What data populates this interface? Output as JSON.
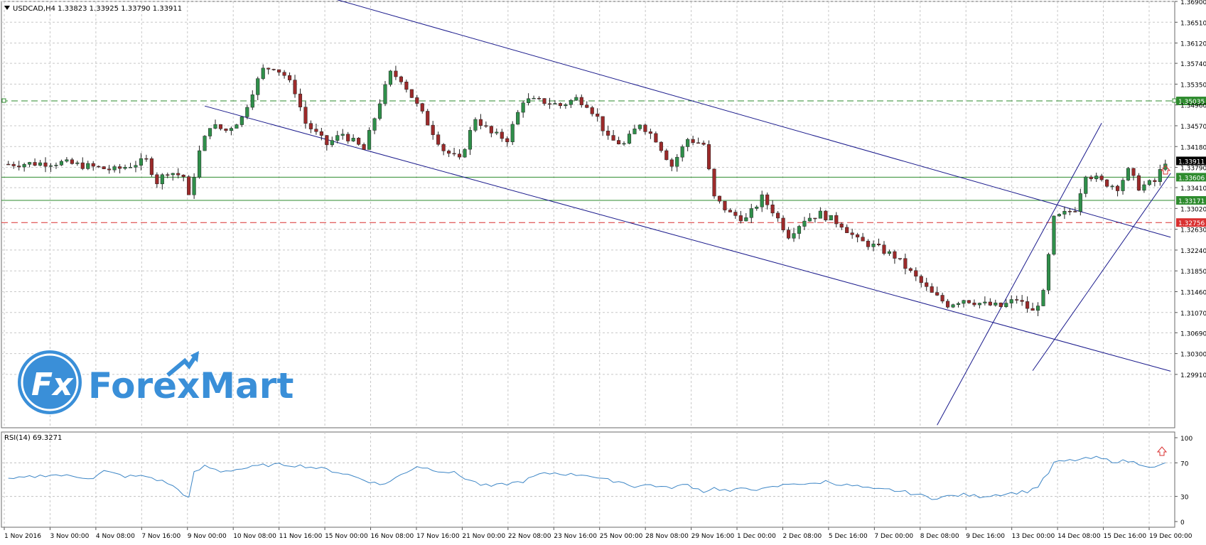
{
  "header": {
    "symbol_line": "USDCAD,H4  1.33823 1.33925 1.33790 1.33911",
    "rsi_label": "RSI(14) 69.3271"
  },
  "logo": {
    "text": "ForexMart",
    "badge": "Fx",
    "color": "#3a8fd8"
  },
  "colors": {
    "bull_body": "#2f8f4a",
    "bear_body": "#9c2a2a",
    "wick": "#1f1f1f",
    "channel": "#1a1a8c",
    "resistance": "#2e8b2e",
    "support_red": "#d93030",
    "rsi_line": "#3d86c6"
  },
  "chart_data": [
    {
      "type": "candlestick",
      "title": "USDCAD,H4",
      "ylim": [
        1.2891,
        1.369
      ],
      "price_axis_ticks": [
        "1.36900",
        "1.36510",
        "1.36120",
        "1.35740",
        "1.35350",
        "1.34960",
        "1.34570",
        "1.34180",
        "1.33790",
        "1.33410",
        "1.33020",
        "1.32630",
        "1.32240",
        "1.31850",
        "1.31460",
        "1.31070",
        "1.30690",
        "1.30300",
        "1.29910"
      ],
      "time_axis_ticks": [
        "1 Nov 2016",
        "3 Nov 00:00",
        "4 Nov 08:00",
        "7 Nov 16:00",
        "9 Nov 00:00",
        "10 Nov 08:00",
        "11 Nov 16:00",
        "15 Nov 00:00",
        "16 Nov 08:00",
        "17 Nov 16:00",
        "21 Nov 00:00",
        "22 Nov 08:00",
        "23 Nov 16:00",
        "25 Nov 00:00",
        "28 Nov 08:00",
        "29 Nov 16:00",
        "1 Dec 00:00",
        "2 Dec 08:00",
        "5 Dec 16:00",
        "7 Dec 00:00",
        "8 Dec 08:00",
        "9 Dec 16:00",
        "13 Dec 00:00",
        "14 Dec 08:00",
        "15 Dec 16:00",
        "19 Dec 00:00"
      ],
      "price_trend_path": [
        [
          0,
          1.3385
        ],
        [
          10,
          1.3388
        ],
        [
          20,
          1.3374
        ],
        [
          26,
          1.3392
        ],
        [
          28,
          1.3352
        ],
        [
          30,
          1.3372
        ],
        [
          33,
          1.3362
        ],
        [
          34,
          1.3322
        ],
        [
          36,
          1.3408
        ],
        [
          38,
          1.3458
        ],
        [
          41,
          1.3448
        ],
        [
          44,
          1.3472
        ],
        [
          46,
          1.3522
        ],
        [
          48,
          1.3562
        ],
        [
          50,
          1.3568
        ],
        [
          52,
          1.3552
        ],
        [
          54,
          1.3522
        ],
        [
          56,
          1.3462
        ],
        [
          60,
          1.3422
        ],
        [
          63,
          1.3442
        ],
        [
          67,
          1.3412
        ],
        [
          70,
          1.3502
        ],
        [
          72,
          1.3555
        ],
        [
          74,
          1.3545
        ],
        [
          76,
          1.3512
        ],
        [
          79,
          1.3462
        ],
        [
          82,
          1.3412
        ],
        [
          85,
          1.3392
        ],
        [
          88,
          1.3472
        ],
        [
          91,
          1.3442
        ],
        [
          94,
          1.3432
        ],
        [
          97,
          1.3505
        ],
        [
          101,
          1.3502
        ],
        [
          104,
          1.3495
        ],
        [
          107,
          1.3508
        ],
        [
          109,
          1.3498
        ],
        [
          111,
          1.3472
        ],
        [
          113,
          1.3432
        ],
        [
          116,
          1.3422
        ],
        [
          119,
          1.3462
        ],
        [
          122,
          1.3432
        ],
        [
          125,
          1.3382
        ],
        [
          128,
          1.3432
        ],
        [
          131,
          1.3422
        ],
        [
          133,
          1.3322
        ],
        [
          136,
          1.3292
        ],
        [
          139,
          1.3282
        ],
        [
          142,
          1.3322
        ],
        [
          144,
          1.3298
        ],
        [
          147,
          1.3252
        ],
        [
          150,
          1.3282
        ],
        [
          153,
          1.3292
        ],
        [
          157,
          1.3272
        ],
        [
          160,
          1.3242
        ],
        [
          163,
          1.3232
        ],
        [
          167,
          1.3212
        ],
        [
          170,
          1.3182
        ],
        [
          174,
          1.3142
        ],
        [
          177,
          1.3122
        ],
        [
          180,
          1.3132
        ],
        [
          184,
          1.3122
        ],
        [
          187,
          1.3118
        ],
        [
          190,
          1.3132
        ],
        [
          193,
          1.3108
        ],
        [
          195,
          1.3142
        ],
        [
          197,
          1.3282
        ],
        [
          199,
          1.3292
        ],
        [
          201,
          1.3302
        ],
        [
          203,
          1.3368
        ],
        [
          206,
          1.3352
        ],
        [
          209,
          1.3342
        ],
        [
          211,
          1.3372
        ],
        [
          213,
          1.3342
        ],
        [
          216,
          1.3352
        ],
        [
          218,
          1.3391
        ]
      ],
      "channel_lines": [
        {
          "role": "upper",
          "from": [
            62,
            1.3693
          ],
          "to": [
            219,
            1.3248
          ]
        },
        {
          "role": "lower",
          "from": [
            37,
            1.3494
          ],
          "to": [
            219,
            1.2997
          ]
        },
        {
          "role": "up-upper",
          "from": [
            175,
            1.2896
          ],
          "to": [
            206,
            1.3462
          ]
        },
        {
          "role": "up-lower",
          "from": [
            193,
            1.2998
          ],
          "to": [
            219,
            1.3368
          ]
        }
      ],
      "horizontal_levels": [
        {
          "price": 1.35035,
          "label": "1.35035",
          "style": "dashed",
          "color": "#2e8b2e"
        },
        {
          "price": 1.33606,
          "label": "1.33606",
          "style": "solid",
          "color": "#2e8b2e"
        },
        {
          "price": 1.33171,
          "label": "1.33171",
          "style": "solid",
          "color": "#2e8b2e"
        },
        {
          "price": 1.32756,
          "label": "1.32756",
          "style": "dashed",
          "color": "#d93030"
        }
      ],
      "current_price": {
        "value": 1.33911,
        "label": "1.33911"
      }
    },
    {
      "type": "line",
      "title": "RSI(14) 69.3271",
      "ylim": [
        0,
        100
      ],
      "y_ticks": [
        "100",
        "70",
        "30",
        "0"
      ],
      "x_count": 220,
      "rsi_path": [
        [
          0,
          50
        ],
        [
          8,
          56
        ],
        [
          16,
          52
        ],
        [
          18,
          60
        ],
        [
          22,
          54
        ],
        [
          26,
          54
        ],
        [
          30,
          46
        ],
        [
          32,
          38
        ],
        [
          34,
          28
        ],
        [
          35,
          58
        ],
        [
          37,
          66
        ],
        [
          40,
          60
        ],
        [
          44,
          63
        ],
        [
          48,
          67
        ],
        [
          52,
          68
        ],
        [
          56,
          66
        ],
        [
          60,
          62
        ],
        [
          64,
          56
        ],
        [
          68,
          48
        ],
        [
          70,
          44
        ],
        [
          72,
          48
        ],
        [
          74,
          56
        ],
        [
          77,
          66
        ],
        [
          80,
          62
        ],
        [
          84,
          58
        ],
        [
          86,
          52
        ],
        [
          89,
          44
        ],
        [
          91,
          42
        ],
        [
          95,
          46
        ],
        [
          97,
          48
        ],
        [
          100,
          56
        ],
        [
          103,
          58
        ],
        [
          106,
          56
        ],
        [
          109,
          56
        ],
        [
          112,
          50
        ],
        [
          115,
          48
        ],
        [
          118,
          42
        ],
        [
          121,
          44
        ],
        [
          124,
          40
        ],
        [
          128,
          44
        ],
        [
          131,
          36
        ],
        [
          133,
          40
        ],
        [
          136,
          36
        ],
        [
          139,
          40
        ],
        [
          142,
          38
        ],
        [
          145,
          42
        ],
        [
          148,
          46
        ],
        [
          151,
          44
        ],
        [
          154,
          48
        ],
        [
          157,
          44
        ],
        [
          160,
          42
        ],
        [
          163,
          38
        ],
        [
          166,
          38
        ],
        [
          170,
          34
        ],
        [
          174,
          28
        ],
        [
          177,
          30
        ],
        [
          180,
          32
        ],
        [
          183,
          30
        ],
        [
          186,
          32
        ],
        [
          189,
          34
        ],
        [
          192,
          36
        ],
        [
          194,
          42
        ],
        [
          196,
          58
        ],
        [
          197,
          70
        ],
        [
          199,
          72
        ],
        [
          202,
          74
        ],
        [
          205,
          76
        ],
        [
          208,
          72
        ],
        [
          211,
          72
        ],
        [
          214,
          68
        ],
        [
          216,
          64
        ],
        [
          218,
          69.3
        ]
      ]
    }
  ]
}
